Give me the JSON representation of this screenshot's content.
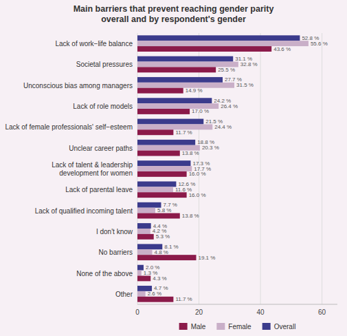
{
  "chart_data": {
    "type": "bar",
    "orientation": "horizontal",
    "title": "Main barriers that prevent reaching gender parity\noverall and by respondent's gender",
    "categories": [
      "Lack of work−life balance",
      "Societal pressures",
      "Unconscious bias among managers",
      "Lack of role models",
      "Lack of female professionals' self−esteem",
      "Unclear career paths",
      "Lack of talent & leadership\ndevelopment for women",
      "Lack of parental leave",
      "Lack of qualified incoming talent",
      "I don't know",
      "No barriers",
      "None of the above",
      "Other"
    ],
    "series": [
      {
        "name": "Overall",
        "color": "#3b3b8c",
        "values": [
          52.8,
          31.1,
          27.7,
          24.2,
          21.5,
          18.8,
          17.3,
          12.6,
          7.7,
          4.4,
          8.1,
          2.0,
          4.7
        ],
        "value_labels": [
          "52.8 %",
          "31.1 %",
          "27.7 %",
          "24.2 %",
          "21.5 %",
          "18.8 %",
          "17.3 %",
          "12.6 %",
          "7.7 %",
          "4.4 %",
          "8.1 %",
          "2.0 %",
          "4.7 %"
        ]
      },
      {
        "name": "Female",
        "color": "#c9afc8",
        "values": [
          55.6,
          32.8,
          31.5,
          26.4,
          24.4,
          20.3,
          17.7,
          11.6,
          5.8,
          4.2,
          4.8,
          1.3,
          2.6
        ],
        "value_labels": [
          "55.6 %",
          "32.8 %",
          "31.5 %",
          "26.4 %",
          "24.4 %",
          "20.3 %",
          "17.7 %",
          "11.6 %",
          "5.8 %",
          "4.2 %",
          "4.8 %",
          "1.3 %",
          "2.6 %"
        ]
      },
      {
        "name": "Male",
        "color": "#8b1a4a",
        "values": [
          43.6,
          25.5,
          14.9,
          17.0,
          11.7,
          13.8,
          16.0,
          16.0,
          13.8,
          5.3,
          19.1,
          4.3,
          11.7
        ],
        "value_labels": [
          "43.6 %",
          "25.5 %",
          "14.9 %",
          "17.0 %",
          "11.7 %",
          "13.8 %",
          "16.0 %",
          "16.0 %",
          "13.8 %",
          "5.3 %",
          "19.1 %",
          "4.3 %",
          "11.7 %"
        ]
      }
    ],
    "xlim": [
      0,
      65
    ],
    "xticks": [
      0,
      20,
      40,
      60
    ],
    "grid": true,
    "data_labels": true,
    "legend": "bottom"
  }
}
